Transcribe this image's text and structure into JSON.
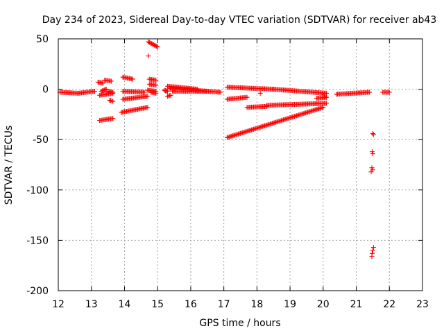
{
  "chart_data": {
    "type": "scatter",
    "title": "Day 234 of 2023, Sidereal Day-to-day VTEC variation (SDTVAR) for receiver ab43",
    "xlabel": "GPS time / hours",
    "ylabel": "SDTVAR / TECUs",
    "xlim": [
      12,
      23
    ],
    "ylim": [
      -200,
      50
    ],
    "grid": true,
    "marker": "plus",
    "color": "#ff0000",
    "x_ticks": [
      "12",
      "13",
      "14",
      "15",
      "16",
      "17",
      "18",
      "19",
      "20",
      "21",
      "22",
      "23"
    ],
    "y_ticks": [
      "50",
      "0",
      "-50",
      "-100",
      "-150",
      "-200"
    ],
    "series": [
      {
        "name": "SDTVAR",
        "segments": [
          {
            "x0": 12.05,
            "y0": -3,
            "x1": 12.6,
            "y1": -4
          },
          {
            "x0": 12.6,
            "y0": -4,
            "x1": 13.1,
            "y1": -2
          },
          {
            "x0": 13.2,
            "y0": 7,
            "x1": 13.35,
            "y1": 6
          },
          {
            "x0": 13.4,
            "y0": 9,
            "x1": 13.6,
            "y1": 8
          },
          {
            "x0": 13.3,
            "y0": -2,
            "x1": 13.45,
            "y1": 0
          },
          {
            "x0": 13.25,
            "y0": -6,
            "x1": 13.45,
            "y1": -5
          },
          {
            "x0": 13.5,
            "y0": -2,
            "x1": 13.65,
            "y1": -3
          },
          {
            "x0": 13.45,
            "y0": -5,
            "x1": 13.65,
            "y1": -4
          },
          {
            "x0": 13.55,
            "y0": -11,
            "x1": 13.65,
            "y1": -12
          },
          {
            "x0": 13.25,
            "y0": -31,
            "x1": 13.65,
            "y1": -29
          },
          {
            "x0": 13.95,
            "y0": 12,
            "x1": 14.25,
            "y1": 10
          },
          {
            "x0": 13.95,
            "y0": -2,
            "x1": 14.6,
            "y1": -3
          },
          {
            "x0": 13.95,
            "y0": -10,
            "x1": 14.7,
            "y1": -7
          },
          {
            "x0": 13.9,
            "y0": -23,
            "x1": 14.7,
            "y1": -18
          },
          {
            "x0": 14.72,
            "y0": 47,
            "x1": 15.0,
            "y1": 42
          },
          {
            "x0": 14.75,
            "y0": 10,
            "x1": 14.95,
            "y1": 9
          },
          {
            "x0": 14.75,
            "y0": 5,
            "x1": 14.95,
            "y1": 4
          },
          {
            "x0": 14.7,
            "y0": -1,
            "x1": 14.95,
            "y1": -2
          },
          {
            "x0": 14.8,
            "y0": -3,
            "x1": 14.95,
            "y1": -4
          },
          {
            "x0": 15.2,
            "y0": -1,
            "x1": 15.3,
            "y1": -2
          },
          {
            "x0": 15.3,
            "y0": -7,
            "x1": 15.4,
            "y1": -6
          },
          {
            "x0": 15.35,
            "y0": 1,
            "x1": 16.9,
            "y1": -3
          },
          {
            "x0": 15.45,
            "y0": -2,
            "x1": 16.5,
            "y1": -2
          },
          {
            "x0": 15.3,
            "y0": 3,
            "x1": 16.2,
            "y1": 0
          },
          {
            "x0": 17.1,
            "y0": 2,
            "x1": 18.5,
            "y1": 0
          },
          {
            "x0": 18.5,
            "y0": 0,
            "x1": 20.1,
            "y1": -4
          },
          {
            "x0": 17.1,
            "y0": -10,
            "x1": 17.7,
            "y1": -8
          },
          {
            "x0": 17.7,
            "y0": -18,
            "x1": 18.3,
            "y1": -17
          },
          {
            "x0": 18.3,
            "y0": -16,
            "x1": 20.1,
            "y1": -14
          },
          {
            "x0": 17.1,
            "y0": -48,
            "x1": 20.0,
            "y1": -18
          },
          {
            "x0": 19.8,
            "y0": -9,
            "x1": 20.1,
            "y1": -8
          },
          {
            "x0": 20.4,
            "y0": -5,
            "x1": 21.4,
            "y1": -3
          },
          {
            "x0": 21.8,
            "y0": -3,
            "x1": 22.0,
            "y1": -3
          }
        ],
        "points": [
          {
            "x": 14.72,
            "y": 33
          },
          {
            "x": 15.25,
            "y": -2
          },
          {
            "x": 20.0,
            "y": -5
          },
          {
            "x": 20.05,
            "y": -7
          },
          {
            "x": 18.1,
            "y": -4
          },
          {
            "x": 21.5,
            "y": -44
          },
          {
            "x": 21.52,
            "y": -45
          },
          {
            "x": 21.48,
            "y": -62
          },
          {
            "x": 21.5,
            "y": -64
          },
          {
            "x": 21.47,
            "y": -78
          },
          {
            "x": 21.5,
            "y": -80
          },
          {
            "x": 21.45,
            "y": -82
          },
          {
            "x": 21.52,
            "y": -157
          },
          {
            "x": 21.5,
            "y": -160
          },
          {
            "x": 21.48,
            "y": -163
          },
          {
            "x": 21.47,
            "y": -166
          }
        ]
      }
    ]
  }
}
